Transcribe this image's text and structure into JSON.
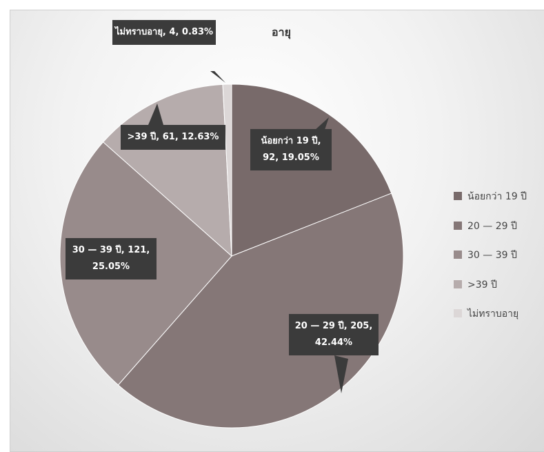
{
  "chart_data": {
    "type": "pie",
    "title": "อายุ",
    "categories": [
      "น้อยกว่า 19 ปี",
      "20 — 29 ปี",
      "30 — 39 ปี",
      ">39 ปี",
      "ไม่ทราบอายุ"
    ],
    "values": [
      92,
      205,
      121,
      61,
      4
    ],
    "value_labels": [
      "น้อยกว่า 19 ปี, 92, 19.05%",
      "20 — 29 ปี, 205, 42.44%",
      "30 — 39 ปี, 121, 25.05%",
      ">39 ปี, 61, 12.63%",
      "ไม่ทราบอายุ, 4, 0.83%"
    ],
    "colors": [
      "#786a6a",
      "#857777",
      "#988b8b",
      "#b6acac",
      "#dcd7d7"
    ],
    "legend": "right"
  }
}
